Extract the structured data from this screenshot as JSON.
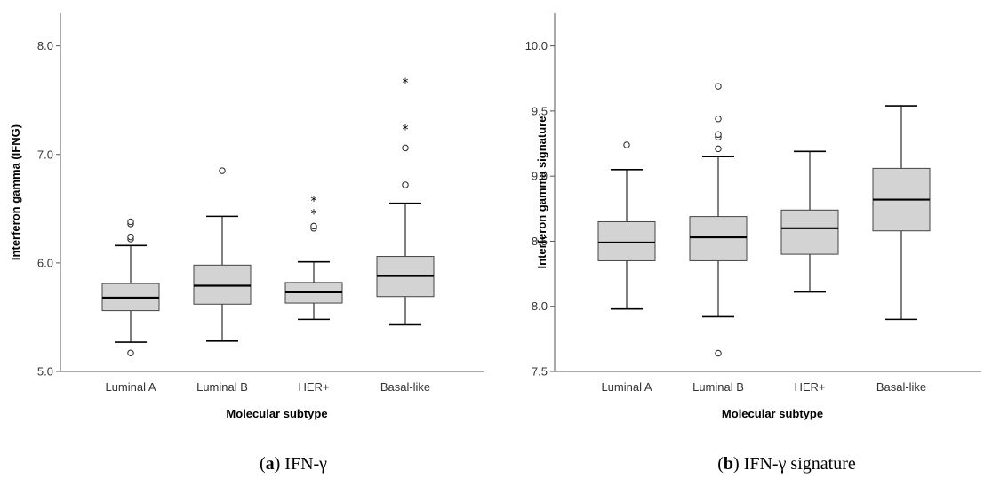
{
  "chart_data": [
    {
      "type": "box",
      "caption": {
        "label": "a",
        "text": "IFN-γ"
      },
      "xlabel": "Molecular subtype",
      "ylabel": "Interferon gamma (IFNG)",
      "ylim": [
        5.0,
        8.3
      ],
      "yticks": [
        "5.0",
        "6.0",
        "7.0",
        "8.0"
      ],
      "ytick_values": [
        5.0,
        6.0,
        7.0,
        8.0
      ],
      "categories": [
        "Luminal A",
        "Luminal B",
        "HER+",
        "Basal-like"
      ],
      "box_color": "#d3d3d3",
      "boxes": [
        {
          "whisker_low": 5.27,
          "q1": 5.56,
          "median": 5.68,
          "q3": 5.81,
          "whisker_high": 6.16,
          "outliers": [
            5.17,
            6.22,
            6.24,
            6.36,
            6.38
          ],
          "extremes": []
        },
        {
          "whisker_low": 5.28,
          "q1": 5.62,
          "median": 5.79,
          "q3": 5.98,
          "whisker_high": 6.43,
          "outliers": [
            6.85
          ],
          "extremes": []
        },
        {
          "whisker_low": 5.48,
          "q1": 5.63,
          "median": 5.73,
          "q3": 5.82,
          "whisker_high": 6.01,
          "outliers": [
            6.32,
            6.34
          ],
          "extremes": [
            6.46,
            6.58
          ]
        },
        {
          "whisker_low": 5.43,
          "q1": 5.69,
          "median": 5.88,
          "q3": 6.06,
          "whisker_high": 6.55,
          "outliers": [
            6.72,
            7.06
          ],
          "extremes": [
            7.24,
            7.67
          ]
        }
      ]
    },
    {
      "type": "box",
      "caption": {
        "label": "b",
        "text": "IFN-γ signature"
      },
      "xlabel": "Molecular subtype",
      "ylabel": "Interferon gamma signature",
      "ylim": [
        7.5,
        10.25
      ],
      "yticks": [
        "7.5",
        "8.0",
        "8.5",
        "9.0",
        "9.5",
        "10.0"
      ],
      "ytick_values": [
        7.5,
        8.0,
        8.5,
        9.0,
        9.5,
        10.0
      ],
      "categories": [
        "Luminal A",
        "Luminal B",
        "HER+",
        "Basal-like"
      ],
      "box_color": "#d3d3d3",
      "boxes": [
        {
          "whisker_low": 7.98,
          "q1": 8.35,
          "median": 8.49,
          "q3": 8.65,
          "whisker_high": 9.05,
          "outliers": [
            9.24
          ],
          "extremes": []
        },
        {
          "whisker_low": 7.92,
          "q1": 8.35,
          "median": 8.53,
          "q3": 8.69,
          "whisker_high": 9.15,
          "outliers": [
            7.64,
            9.21,
            9.3,
            9.32,
            9.44,
            9.69
          ],
          "extremes": []
        },
        {
          "whisker_low": 8.11,
          "q1": 8.4,
          "median": 8.6,
          "q3": 8.74,
          "whisker_high": 9.19,
          "outliers": [],
          "extremes": []
        },
        {
          "whisker_low": 7.9,
          "q1": 8.58,
          "median": 8.82,
          "q3": 9.06,
          "whisker_high": 9.54,
          "outliers": [],
          "extremes": []
        }
      ]
    }
  ]
}
